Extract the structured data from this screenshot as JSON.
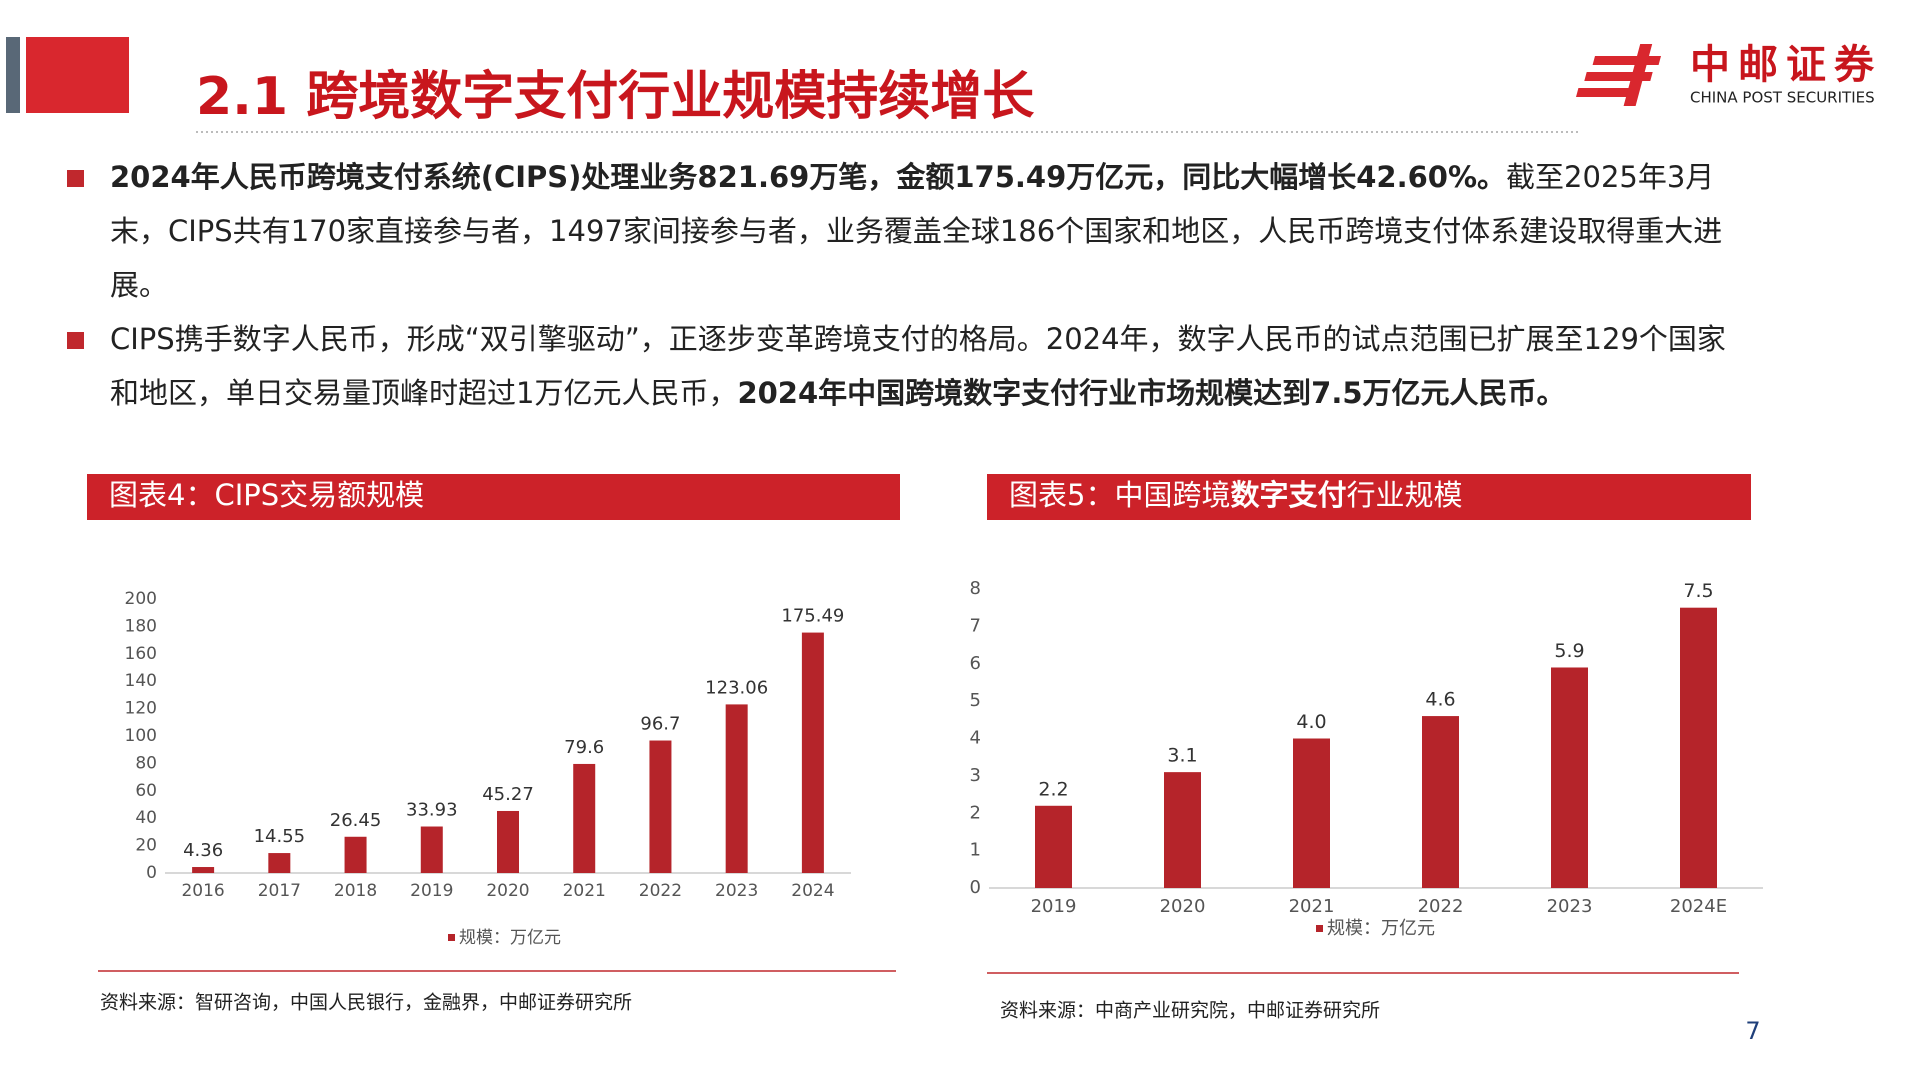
{
  "header": {
    "title": "2.1 跨境数字支付行业规模持续增长"
  },
  "logo": {
    "name": "中邮证券",
    "subtitle": "CHINA POST SECURITIES"
  },
  "bullets": [
    [
      {
        "text": "2024年人民币跨境支付系统(CIPS)处理业务821.69万笔，金额175.49万亿元，同比大幅增长42.60%。",
        "bold": true
      },
      {
        "text": "截至2025年3月末，CIPS共有170家直接参与者，1497家间接参与者，业务覆盖全球186个国家和地区，人民币跨境支付体系建设取得重大进展。",
        "bold": false
      }
    ],
    [
      {
        "text": "CIPS携手数字人民币，形成“双引擎驱动”，正逐步变革跨境支付的格局。2024年，数字人民币的试点范围已扩展至129个国家和地区，单日交易量顶峰时超过1万亿元人民币，",
        "bold": false
      },
      {
        "text": "2024年中国跨境数字支付行业市场规模达到7.5万亿元人民币。",
        "bold": true
      }
    ]
  ],
  "chart_data": [
    {
      "type": "bar",
      "title": [
        {
          "text": "图表4：CIPS交易额规模",
          "bold": false
        }
      ],
      "categories": [
        "2016",
        "2017",
        "2018",
        "2019",
        "2020",
        "2021",
        "2022",
        "2023",
        "2024"
      ],
      "series": [
        {
          "name": "规模：万亿元",
          "color": "#b5242a",
          "values": [
            4.36,
            14.55,
            26.45,
            33.93,
            45.27,
            79.6,
            96.7,
            123.06,
            175.49
          ]
        }
      ],
      "ylim": [
        0,
        200
      ],
      "yticks": [
        0,
        20,
        40,
        60,
        80,
        100,
        120,
        140,
        160,
        180,
        200
      ],
      "grid": false,
      "legend": "bottom",
      "source": "资料来源：智研咨询，中国人民银行，金融界，中邮证券研究所"
    },
    {
      "type": "bar",
      "title": [
        {
          "text": "图表5：中国跨境",
          "bold": false
        },
        {
          "text": "数字支付",
          "bold": true
        },
        {
          "text": "行业规模",
          "bold": false
        }
      ],
      "categories": [
        "2019",
        "2020",
        "2021",
        "2022",
        "2023",
        "2024E"
      ],
      "series": [
        {
          "name": "规模：万亿元",
          "color": "#b5242a",
          "values": [
            2.2,
            3.1,
            4.0,
            4.6,
            5.9,
            7.5
          ],
          "value_labels": [
            "2.2",
            "3.1",
            "4.0",
            "4.6",
            "5.9",
            "7.5"
          ]
        }
      ],
      "ylim": [
        0,
        8
      ],
      "yticks": [
        0,
        1,
        2,
        3,
        4,
        5,
        6,
        7,
        8
      ],
      "grid": false,
      "legend": "bottom",
      "source": "资料来源：中商产业研究院，中邮证券研究所"
    }
  ],
  "page_number": "7"
}
